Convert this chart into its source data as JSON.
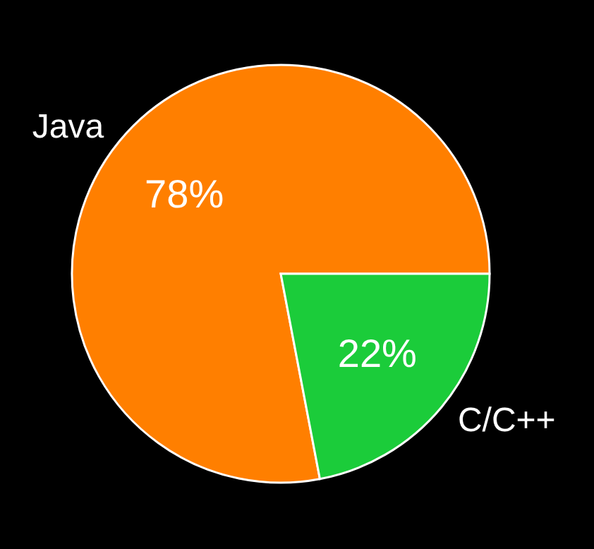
{
  "chart_data": {
    "type": "pie",
    "categories": [
      "Java",
      "C/C++"
    ],
    "values": [
      78,
      22
    ],
    "colors": [
      "#ff7f00",
      "#1bcc3a"
    ],
    "value_labels": [
      "78%",
      "22%"
    ]
  }
}
